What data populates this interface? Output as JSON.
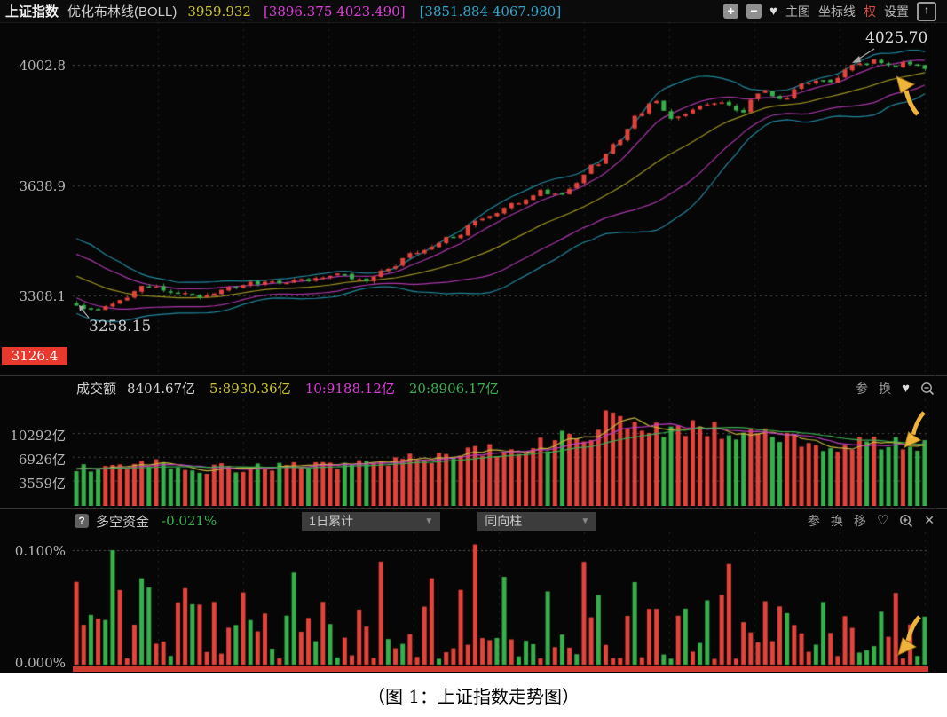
{
  "header": {
    "title": "上证指数",
    "indicator": "优化布林线(BOLL)",
    "boll_mid": "3959.932",
    "boll_inner": "[3896.375 4023.490]",
    "boll_outer": "[3851.884 4067.980]",
    "tools": {
      "zoom_in": "+",
      "zoom_out": "−",
      "favorite": "♥",
      "main_chart": "主图",
      "axis_lines": "坐标线",
      "rights": "权",
      "settings": "设置",
      "export": "↑"
    }
  },
  "main_chart": {
    "y_tick_labels": [
      "4002.8",
      "3638.9",
      "3308.1"
    ],
    "min_badge": "3126.4",
    "low_annotation": "3258.15",
    "high_annotation": "4025.70"
  },
  "volume_panel": {
    "label": "成交额",
    "value": "8404.67亿",
    "ma5": "5:8930.36亿",
    "ma10": "10:9188.12亿",
    "ma20": "20:8906.17亿",
    "tool_param": "参",
    "tool_switch": "换",
    "tool_favorite": "♥",
    "y_ticks": [
      "10292亿",
      "6926亿",
      "3559亿"
    ]
  },
  "fund_panel": {
    "help": "?",
    "label": "多空资金",
    "value": "-0.021%",
    "dropdown_period": "1日累计",
    "dropdown_style": "同向柱",
    "dropdown_arrow": "▼",
    "tool_param": "参",
    "tool_switch": "换",
    "tool_move": "移",
    "tool_favorite": "♡",
    "tool_close": "✕",
    "y_top": "0.100%",
    "y_bottom": "0.000%"
  },
  "caption": "（图 1：上证指数走势图）",
  "colors": {
    "up": "#e2443c",
    "down": "#37b04c",
    "boll_mid_line": "#9e9420",
    "boll_inner_band": "#ab36ab",
    "boll_outer_band": "#20889e",
    "vol_ma5": "#c7b83a",
    "vol_ma10": "#c13ec1",
    "vol_ma20": "#3cb050",
    "badge_bg": "#e8392e",
    "annotation_arrow": "#eeb33b"
  },
  "chart_data": [
    {
      "type": "candlestick",
      "title": "上证指数 优化布林线(BOLL)",
      "note": "Shanghai Composite daily candles with optimized Bollinger bands; red = up, green = down",
      "n_points": 118,
      "y_ticks": [
        4002.8,
        3638.9,
        3308.1
      ],
      "y_min_badge": 3126.4,
      "low_annotation": 3258.15,
      "high_annotation": 4025.7,
      "boll_current": {
        "mid": 3959.932,
        "inner": [
          3896.375,
          4023.49
        ],
        "outer": [
          3851.884,
          4067.98
        ]
      },
      "close_anchors": [
        [
          0.0,
          3278
        ],
        [
          0.02,
          3262
        ],
        [
          0.05,
          3290
        ],
        [
          0.08,
          3335
        ],
        [
          0.11,
          3322
        ],
        [
          0.14,
          3305
        ],
        [
          0.18,
          3332
        ],
        [
          0.22,
          3348
        ],
        [
          0.27,
          3352
        ],
        [
          0.31,
          3372
        ],
        [
          0.34,
          3355
        ],
        [
          0.37,
          3392
        ],
        [
          0.4,
          3438
        ],
        [
          0.44,
          3482
        ],
        [
          0.48,
          3540
        ],
        [
          0.52,
          3588
        ],
        [
          0.55,
          3622
        ],
        [
          0.57,
          3608
        ],
        [
          0.61,
          3698
        ],
        [
          0.64,
          3782
        ],
        [
          0.66,
          3848
        ],
        [
          0.68,
          3895
        ],
        [
          0.7,
          3840
        ],
        [
          0.73,
          3872
        ],
        [
          0.76,
          3893
        ],
        [
          0.78,
          3858
        ],
        [
          0.81,
          3926
        ],
        [
          0.83,
          3900
        ],
        [
          0.86,
          3946
        ],
        [
          0.89,
          3958
        ],
        [
          0.92,
          4000
        ],
        [
          0.94,
          4015
        ],
        [
          0.96,
          3996
        ],
        [
          0.98,
          4008
        ],
        [
          1.0,
          3992
        ]
      ]
    },
    {
      "type": "bar",
      "name": "成交额",
      "unit": "亿",
      "current": 8404.67,
      "ma": {
        "5": 8930.36,
        "10": 9188.12,
        "20": 8906.17
      },
      "y_ticks": [
        10292,
        6926,
        3559
      ],
      "volume_anchors": [
        [
          0.0,
          5300
        ],
        [
          0.06,
          6000
        ],
        [
          0.1,
          5800
        ],
        [
          0.15,
          5200
        ],
        [
          0.2,
          5400
        ],
        [
          0.25,
          5600
        ],
        [
          0.3,
          5500
        ],
        [
          0.35,
          5900
        ],
        [
          0.4,
          6800
        ],
        [
          0.45,
          7400
        ],
        [
          0.5,
          7900
        ],
        [
          0.55,
          8600
        ],
        [
          0.6,
          10300
        ],
        [
          0.63,
          12800
        ],
        [
          0.66,
          11800
        ],
        [
          0.7,
          10400
        ],
        [
          0.74,
          10900
        ],
        [
          0.78,
          9900
        ],
        [
          0.82,
          10600
        ],
        [
          0.86,
          9000
        ],
        [
          0.9,
          8000
        ],
        [
          0.94,
          9400
        ],
        [
          0.97,
          8600
        ],
        [
          1.0,
          8405
        ]
      ]
    },
    {
      "type": "bar",
      "name": "多空资金",
      "current_pct": -0.021,
      "y_axis_pct": [
        0.1,
        0.0
      ],
      "max_spike_pct": 0.105,
      "last_bar": {
        "color": "green",
        "approx_pct": 0.042
      },
      "note": "daily long/short fund flow histogram, mixed red/green thin bars from 0 baseline"
    }
  ]
}
